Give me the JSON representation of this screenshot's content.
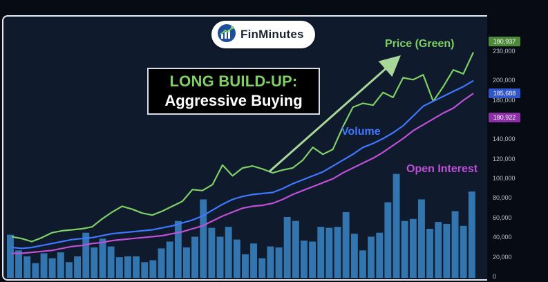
{
  "brand": {
    "name": "FinMinutes",
    "icon": "growth-chart-icon"
  },
  "callout": {
    "line1": "LONG BUILD-UP:",
    "line2": "Aggressive Buying"
  },
  "badges": {
    "price": "180,937",
    "volume": "185,688",
    "oi": "180,922"
  },
  "colors": {
    "price": "#7fd066",
    "volume": "#3f77ff",
    "oi": "#c050d8",
    "bars": "#3a86c7",
    "background": "#0f1a2c"
  },
  "chart_data": {
    "type": "bar",
    "title": "",
    "xlabel": "",
    "ylabel": "",
    "ylim": [
      0,
      260000
    ],
    "yticks": [
      "0",
      "20,000",
      "40,000",
      "60,000",
      "80,000",
      "100,000",
      "120,000",
      "140,000",
      "160,000",
      "180,000",
      "200,000",
      "230,000"
    ],
    "tick_values": [
      0,
      20000,
      40000,
      60000,
      80000,
      100000,
      120000,
      140000,
      160000,
      180000,
      200000,
      230000
    ],
    "grid": false,
    "series": [
      {
        "name": "Volume bars",
        "kind": "bar",
        "values": [
          44000,
          28000,
          22000,
          15000,
          25000,
          20000,
          26000,
          16000,
          22000,
          46000,
          31000,
          40000,
          32000,
          21000,
          22000,
          22000,
          16000,
          18000,
          30000,
          37000,
          58000,
          31000,
          42000,
          80000,
          51000,
          42000,
          52000,
          39000,
          24000,
          35000,
          20000,
          32000,
          31000,
          62000,
          58000,
          38000,
          37000,
          52000,
          51000,
          52000,
          67000,
          45000,
          28000,
          42000,
          46000,
          77000,
          106000,
          58000,
          60000,
          80000,
          50000,
          57000,
          55000,
          68000,
          53000,
          88000
        ]
      },
      {
        "name": "Price (Green)",
        "kind": "line",
        "values": [
          42000,
          40000,
          37000,
          41000,
          46000,
          48000,
          49000,
          50000,
          52000,
          60000,
          67000,
          73000,
          70000,
          66000,
          64000,
          68000,
          73000,
          78000,
          90000,
          89000,
          95000,
          115000,
          104000,
          112000,
          114000,
          111000,
          107000,
          110000,
          112000,
          120000,
          133000,
          126000,
          131000,
          154000,
          174000,
          178000,
          176000,
          189000,
          184000,
          204000,
          202000,
          207000,
          180000,
          195000,
          212000,
          208000,
          230000
        ]
      },
      {
        "name": "Volume",
        "kind": "line",
        "values": [
          31000,
          30000,
          31000,
          33000,
          35000,
          37000,
          39000,
          40000,
          41000,
          43000,
          45000,
          46000,
          47000,
          48000,
          49000,
          51000,
          53000,
          56000,
          59000,
          63000,
          69000,
          75000,
          80000,
          83000,
          85000,
          86000,
          87000,
          91000,
          96000,
          100000,
          104000,
          108000,
          114000,
          120000,
          126000,
          133000,
          137000,
          142000,
          148000,
          155000,
          165000,
          175000,
          180000,
          185000,
          190000,
          195000,
          201000
        ]
      },
      {
        "name": "Open Interest",
        "kind": "line",
        "values": [
          25000,
          25000,
          26000,
          27000,
          28000,
          30000,
          32000,
          33000,
          35000,
          36000,
          38000,
          39000,
          40000,
          41000,
          42000,
          43000,
          45000,
          47000,
          50000,
          53000,
          58000,
          63000,
          67000,
          71000,
          73000,
          74000,
          76000,
          80000,
          85000,
          89000,
          93000,
          97000,
          101000,
          107000,
          112000,
          117000,
          122000,
          128000,
          135000,
          142000,
          150000,
          156000,
          162000,
          168000,
          173000,
          181000,
          188000
        ]
      }
    ],
    "annotations": [
      "Price (Green)",
      "Volume",
      "Open Interest"
    ]
  }
}
